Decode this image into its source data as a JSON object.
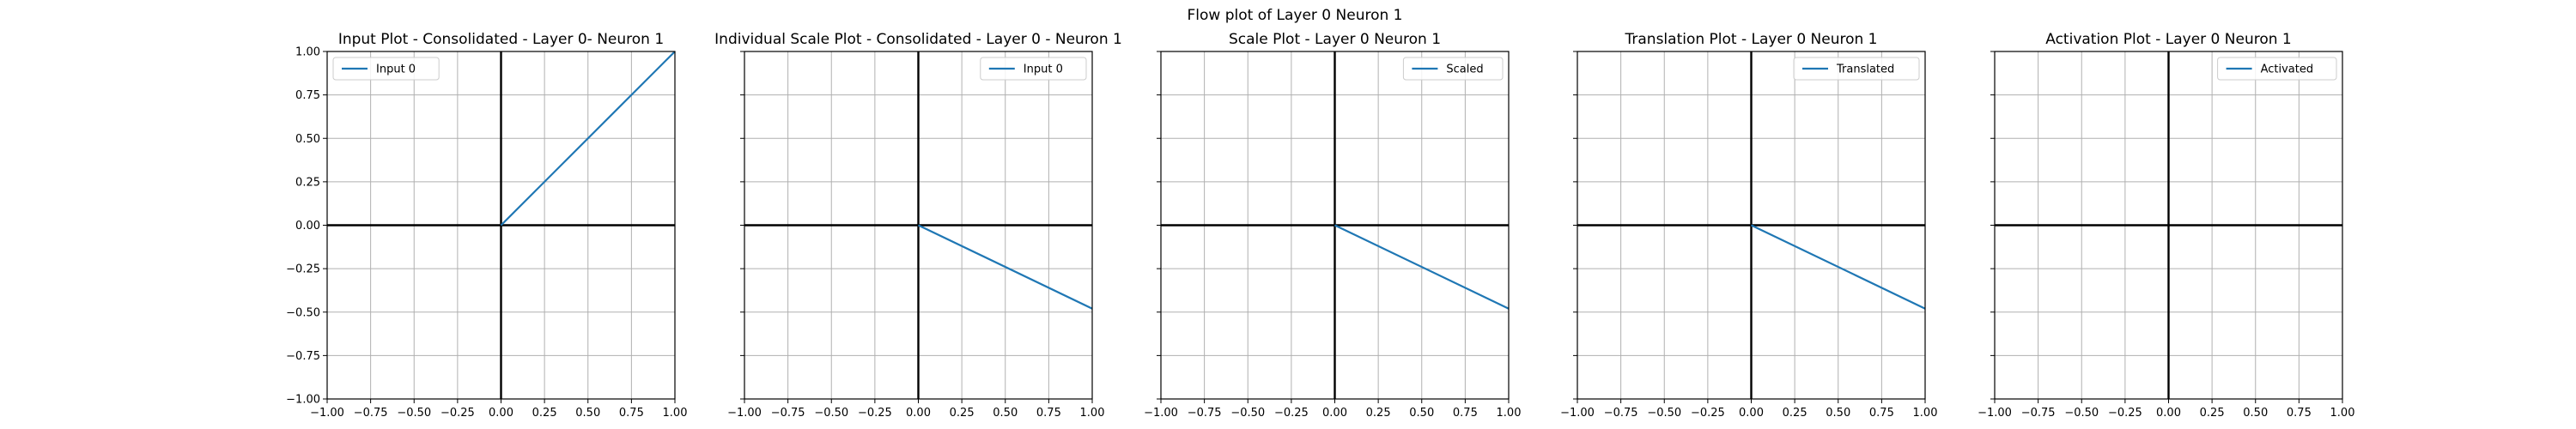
{
  "figure": {
    "suptitle": "Flow plot of Layer 0 Neuron 1"
  },
  "colors": {
    "series": "#1f77b4",
    "grid": "#b0b0b0",
    "axis_line": "#000000"
  },
  "chart_data": [
    {
      "type": "line",
      "title": "Input Plot - Consolidated - Layer 0- Neuron 1",
      "xlim": [
        -1.0,
        1.0
      ],
      "ylim": [
        -1.0,
        1.0
      ],
      "grid": true,
      "legend_position": "top-left",
      "x_ticks": [
        "−1.00",
        "−0.75",
        "−0.50",
        "−0.25",
        "0.00",
        "0.25",
        "0.50",
        "0.75",
        "1.00"
      ],
      "y_ticks": [
        "−1.00",
        "−0.75",
        "−0.50",
        "−0.25",
        "0.00",
        "0.25",
        "0.50",
        "0.75",
        "1.00"
      ],
      "show_y_tick_labels": true,
      "series": [
        {
          "name": "Input 0",
          "x": [
            0.0,
            1.0
          ],
          "y": [
            0.0,
            1.0
          ]
        }
      ]
    },
    {
      "type": "line",
      "title": "Individual Scale Plot - Consolidated - Layer 0 - Neuron 1",
      "xlim": [
        -1.0,
        1.0
      ],
      "ylim": [
        -1.0,
        1.0
      ],
      "grid": true,
      "legend_position": "top-right",
      "x_ticks": [
        "−1.00",
        "−0.75",
        "−0.50",
        "−0.25",
        "0.00",
        "0.25",
        "0.50",
        "0.75",
        "1.00"
      ],
      "y_ticks": [
        "−1.00",
        "−0.75",
        "−0.50",
        "−0.25",
        "0.00",
        "0.25",
        "0.50",
        "0.75",
        "1.00"
      ],
      "show_y_tick_labels": false,
      "series": [
        {
          "name": "Input 0",
          "x": [
            0.0,
            1.0
          ],
          "y": [
            0.0,
            -0.48
          ]
        }
      ]
    },
    {
      "type": "line",
      "title": "Scale Plot - Layer 0 Neuron 1",
      "xlim": [
        -1.0,
        1.0
      ],
      "ylim": [
        -1.0,
        1.0
      ],
      "grid": true,
      "legend_position": "top-right",
      "x_ticks": [
        "−1.00",
        "−0.75",
        "−0.50",
        "−0.25",
        "0.00",
        "0.25",
        "0.50",
        "0.75",
        "1.00"
      ],
      "y_ticks": [
        "−1.00",
        "−0.75",
        "−0.50",
        "−0.25",
        "0.00",
        "0.25",
        "0.50",
        "0.75",
        "1.00"
      ],
      "show_y_tick_labels": false,
      "series": [
        {
          "name": "Scaled",
          "x": [
            0.0,
            1.0
          ],
          "y": [
            0.0,
            -0.48
          ]
        }
      ]
    },
    {
      "type": "line",
      "title": "Translation Plot - Layer 0 Neuron 1",
      "xlim": [
        -1.0,
        1.0
      ],
      "ylim": [
        -1.0,
        1.0
      ],
      "grid": true,
      "legend_position": "top-right",
      "x_ticks": [
        "−1.00",
        "−0.75",
        "−0.50",
        "−0.25",
        "0.00",
        "0.25",
        "0.50",
        "0.75",
        "1.00"
      ],
      "y_ticks": [
        "−1.00",
        "−0.75",
        "−0.50",
        "−0.25",
        "0.00",
        "0.25",
        "0.50",
        "0.75",
        "1.00"
      ],
      "show_y_tick_labels": false,
      "series": [
        {
          "name": "Translated",
          "x": [
            0.0,
            1.0
          ],
          "y": [
            0.0,
            -0.48
          ]
        }
      ]
    },
    {
      "type": "line",
      "title": "Activation Plot - Layer 0 Neuron 1",
      "xlim": [
        -1.0,
        1.0
      ],
      "ylim": [
        -1.0,
        1.0
      ],
      "grid": true,
      "legend_position": "top-right",
      "x_ticks": [
        "−1.00",
        "−0.75",
        "−0.50",
        "−0.25",
        "0.00",
        "0.25",
        "0.50",
        "0.75",
        "1.00"
      ],
      "y_ticks": [
        "−1.00",
        "−0.75",
        "−0.50",
        "−0.25",
        "0.00",
        "0.25",
        "0.50",
        "0.75",
        "1.00"
      ],
      "show_y_tick_labels": false,
      "series": [
        {
          "name": "Activated",
          "x": [],
          "y": []
        }
      ]
    }
  ]
}
